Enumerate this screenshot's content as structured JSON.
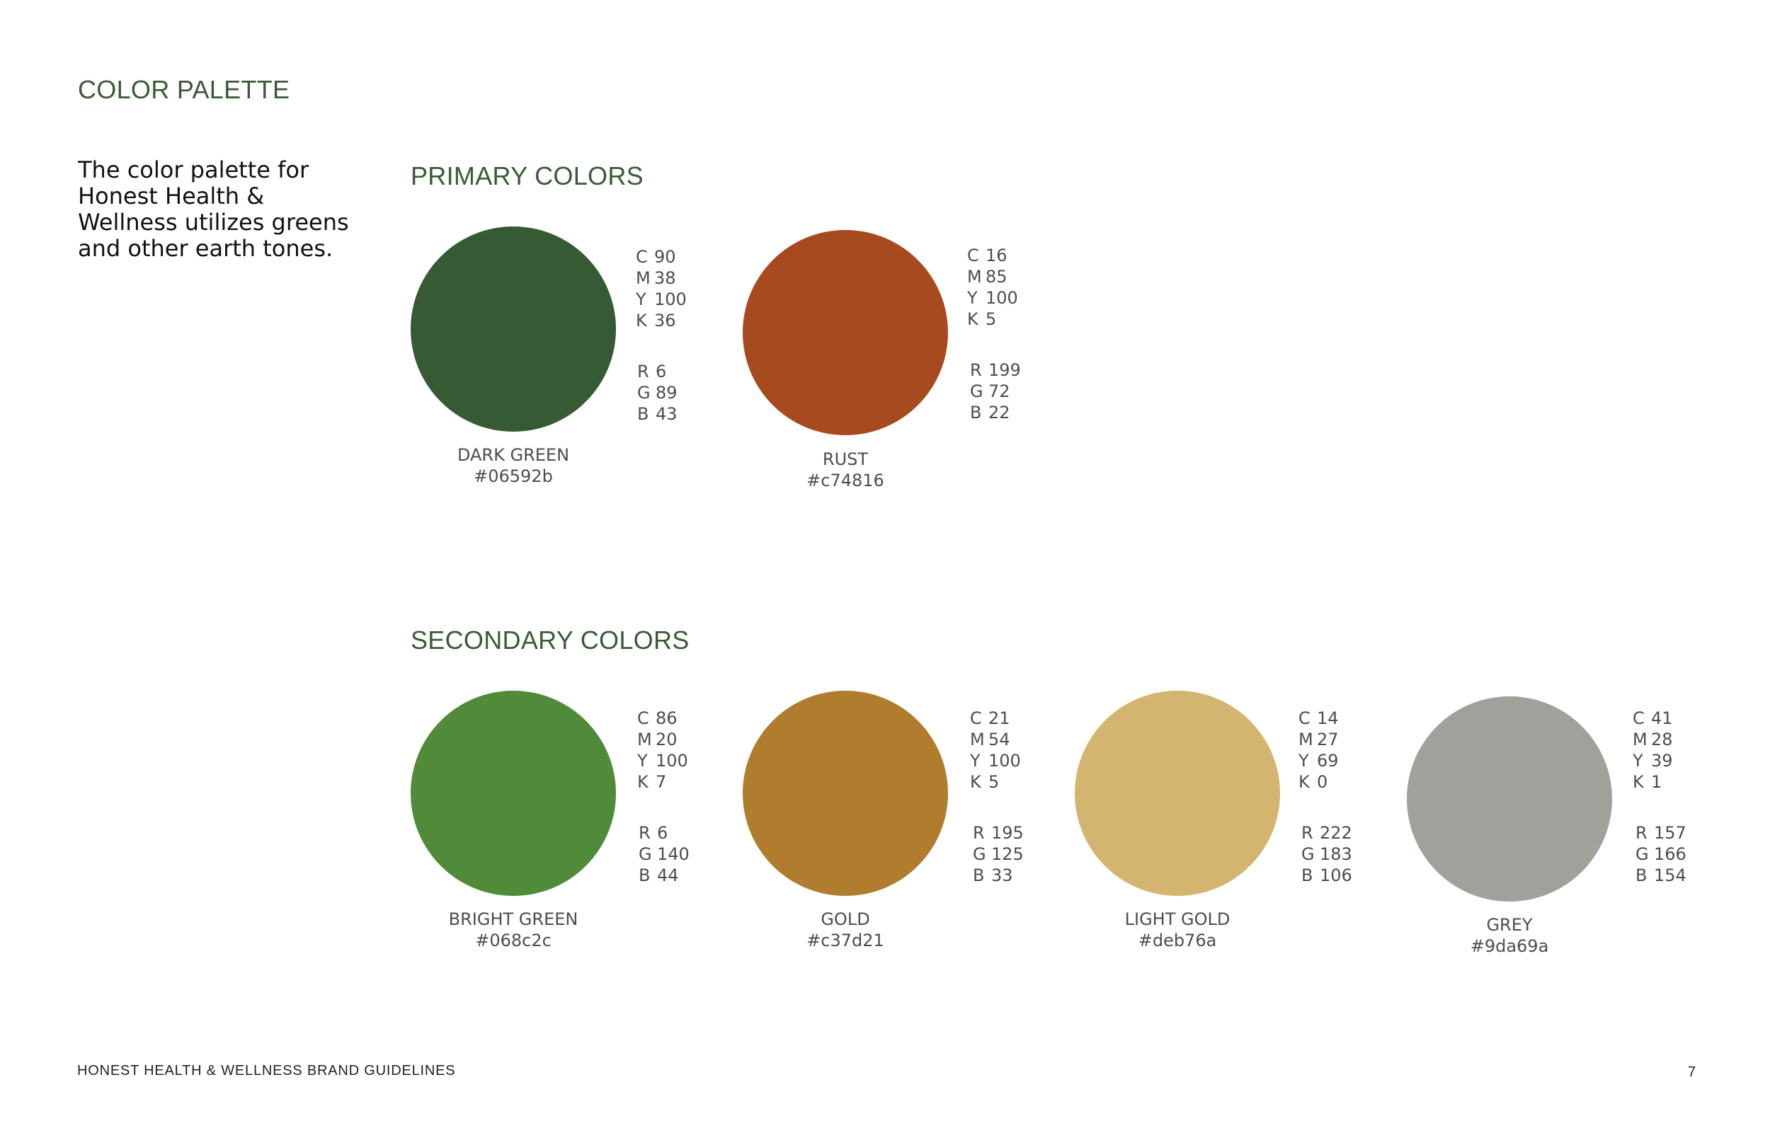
{
  "page_title": "COLOR PALETTE",
  "intro": "The color palette for Honest Health & Wellness utilizes greens and other earth tones.",
  "primary": {
    "heading": "PRIMARY COLORS",
    "swatches": [
      {
        "name": "DARK GREEN",
        "hex": "#06592b",
        "fill": "#355a34",
        "c": "90",
        "m": "38",
        "y": "100",
        "k": "36",
        "r": "6",
        "g": "89",
        "b": "43"
      },
      {
        "name": "RUST",
        "hex": "#c74816",
        "fill": "#a84a20",
        "c": "16",
        "m": "85",
        "y": "100",
        "k": "5",
        "r": "199",
        "g": "72",
        "b": "22"
      }
    ]
  },
  "secondary": {
    "heading": "SECONDARY COLORS",
    "swatches": [
      {
        "name": "BRIGHT GREEN",
        "hex": "#068c2c",
        "fill": "#508b3a",
        "c": "86",
        "m": "20",
        "y": "100",
        "k": "7",
        "r": "6",
        "g": "140",
        "b": "44"
      },
      {
        "name": "GOLD",
        "hex": "#c37d21",
        "fill": "#b07c2e",
        "c": "21",
        "m": "54",
        "y": "100",
        "k": "5",
        "r": "195",
        "g": "125",
        "b": "33"
      },
      {
        "name": "LIGHT GOLD",
        "hex": "#deb76a",
        "fill": "#d4b570",
        "c": "14",
        "m": "27",
        "y": "69",
        "k": "0",
        "r": "222",
        "g": "183",
        "b": "106"
      },
      {
        "name": "GREY",
        "hex": "#9da69a",
        "fill": "#9ea29a",
        "c": "41",
        "m": "28",
        "y": "39",
        "k": "1",
        "r": "157",
        "g": "166",
        "b": "154"
      }
    ]
  },
  "labels": {
    "c": "C",
    "m": "M",
    "y": "Y",
    "k": "K",
    "r": "R",
    "g": "G",
    "b": "B"
  },
  "footer": {
    "brand": "HONEST HEALTH & WELLNESS BRAND GUIDELINES",
    "page_number": "7"
  }
}
